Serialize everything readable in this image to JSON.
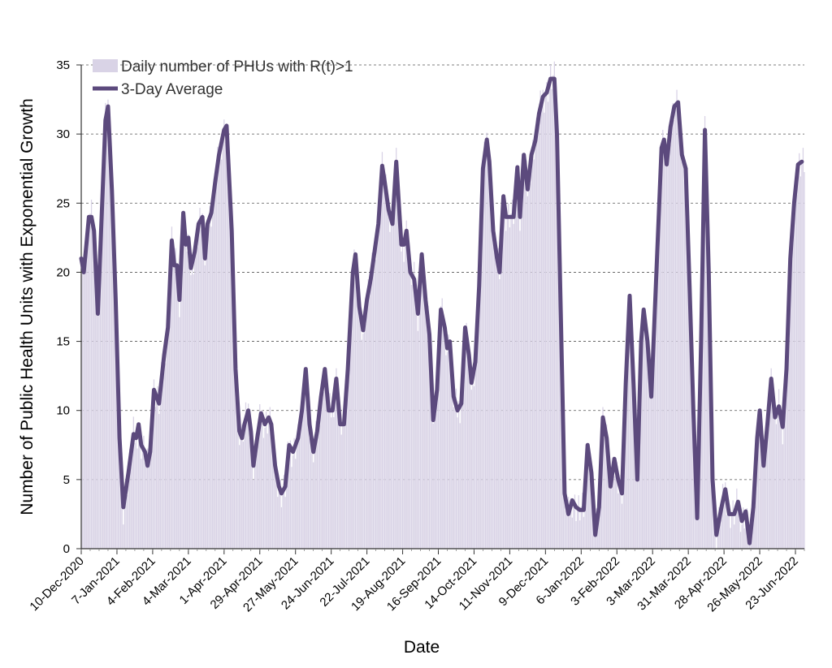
{
  "chart_data": {
    "type": "bar",
    "xlabel": "Date",
    "ylabel": "Number of Public Health Units with Exponential Growth",
    "ylim": [
      0,
      35
    ],
    "yticks": [
      0,
      5,
      10,
      15,
      20,
      25,
      30,
      35
    ],
    "grid": "horizontal dashed",
    "legend_position": "top-left",
    "x_start": "2020-12-10",
    "x_end": "2022-06-30",
    "x_tick_labels": [
      "10-Dec-2020",
      "7-Jan-2021",
      "4-Feb-2021",
      "4-Mar-2021",
      "1-Apr-2021",
      "29-Apr-2021",
      "27-May-2021",
      "24-Jun-2021",
      "22-Jul-2021",
      "19-Aug-2021",
      "16-Sep-2021",
      "14-Oct-2021",
      "11-Nov-2021",
      "9-Dec-2021",
      "6-Jan-2022",
      "3-Feb-2022",
      "3-Mar-2022",
      "31-Mar-2022",
      "28-Apr-2022",
      "26-May-2022",
      "23-Jun-2022"
    ],
    "series": [
      {
        "name": "Daily number of PHUs with R(t)>1",
        "kind": "bar",
        "color": "#d9d3e6"
      },
      {
        "name": "3-Day Average",
        "kind": "line",
        "color": "#5c4a7d",
        "points": [
          [
            "2020-12-10",
            21
          ],
          [
            "2020-12-12",
            20
          ],
          [
            "2020-12-14",
            22
          ],
          [
            "2020-12-16",
            24
          ],
          [
            "2020-12-18",
            24
          ],
          [
            "2020-12-20",
            23
          ],
          [
            "2020-12-23",
            17
          ],
          [
            "2020-12-26",
            24
          ],
          [
            "2020-12-29",
            31
          ],
          [
            "2020-12-31",
            32
          ],
          [
            "2021-01-03",
            26
          ],
          [
            "2021-01-06",
            18
          ],
          [
            "2021-01-09",
            8
          ],
          [
            "2021-01-12",
            3
          ],
          [
            "2021-01-16",
            5.5
          ],
          [
            "2021-01-20",
            8.3
          ],
          [
            "2021-01-22",
            8
          ],
          [
            "2021-01-24",
            9
          ],
          [
            "2021-01-26",
            7.5
          ],
          [
            "2021-01-29",
            7
          ],
          [
            "2021-01-31",
            6
          ],
          [
            "2021-02-02",
            7
          ],
          [
            "2021-02-05",
            11.5
          ],
          [
            "2021-02-09",
            10.5
          ],
          [
            "2021-02-13",
            14
          ],
          [
            "2021-02-16",
            16
          ],
          [
            "2021-02-19",
            22.3
          ],
          [
            "2021-02-21",
            20.5
          ],
          [
            "2021-02-23",
            20.5
          ],
          [
            "2021-02-25",
            18
          ],
          [
            "2021-02-28",
            24.3
          ],
          [
            "2021-03-02",
            22
          ],
          [
            "2021-03-04",
            22.5
          ],
          [
            "2021-03-06",
            20.3
          ],
          [
            "2021-03-09",
            21.5
          ],
          [
            "2021-03-12",
            23.5
          ],
          [
            "2021-03-15",
            24
          ],
          [
            "2021-03-17",
            21
          ],
          [
            "2021-03-19",
            23.5
          ],
          [
            "2021-03-22",
            24.3
          ],
          [
            "2021-03-25",
            26.5
          ],
          [
            "2021-03-28",
            28.5
          ],
          [
            "2021-04-01",
            30.3
          ],
          [
            "2021-04-03",
            30.6
          ],
          [
            "2021-04-07",
            23
          ],
          [
            "2021-04-10",
            13
          ],
          [
            "2021-04-13",
            8.5
          ],
          [
            "2021-04-15",
            8
          ],
          [
            "2021-04-17",
            9
          ],
          [
            "2021-04-20",
            10
          ],
          [
            "2021-04-22",
            8.5
          ],
          [
            "2021-04-24",
            6
          ],
          [
            "2021-04-27",
            8
          ],
          [
            "2021-04-30",
            9.8
          ],
          [
            "2021-05-03",
            9
          ],
          [
            "2021-05-06",
            9.5
          ],
          [
            "2021-05-08",
            9
          ],
          [
            "2021-05-11",
            6
          ],
          [
            "2021-05-14",
            4.5
          ],
          [
            "2021-05-16",
            4
          ],
          [
            "2021-05-19",
            4.5
          ],
          [
            "2021-05-22",
            7.5
          ],
          [
            "2021-05-25",
            7
          ],
          [
            "2021-05-29",
            8
          ],
          [
            "2021-06-01",
            10
          ],
          [
            "2021-06-04",
            13
          ],
          [
            "2021-06-07",
            9
          ],
          [
            "2021-06-10",
            7
          ],
          [
            "2021-06-13",
            8.5
          ],
          [
            "2021-06-16",
            11
          ],
          [
            "2021-06-19",
            13
          ],
          [
            "2021-06-22",
            10
          ],
          [
            "2021-06-25",
            10
          ],
          [
            "2021-06-28",
            12.3
          ],
          [
            "2021-07-01",
            9
          ],
          [
            "2021-07-04",
            9
          ],
          [
            "2021-07-07",
            13
          ],
          [
            "2021-07-11",
            20
          ],
          [
            "2021-07-13",
            21.3
          ],
          [
            "2021-07-16",
            17.5
          ],
          [
            "2021-07-19",
            15.8
          ],
          [
            "2021-07-22",
            18
          ],
          [
            "2021-07-25",
            19.5
          ],
          [
            "2021-07-28",
            21.5
          ],
          [
            "2021-07-31",
            23.5
          ],
          [
            "2021-08-03",
            27.7
          ],
          [
            "2021-08-05",
            26.5
          ],
          [
            "2021-08-08",
            24.5
          ],
          [
            "2021-08-11",
            23.5
          ],
          [
            "2021-08-14",
            28
          ],
          [
            "2021-08-18",
            22
          ],
          [
            "2021-08-20",
            22
          ],
          [
            "2021-08-22",
            23
          ],
          [
            "2021-08-25",
            20
          ],
          [
            "2021-08-28",
            19.5
          ],
          [
            "2021-08-31",
            17
          ],
          [
            "2021-09-03",
            21.3
          ],
          [
            "2021-09-06",
            18
          ],
          [
            "2021-09-09",
            15.5
          ],
          [
            "2021-09-12",
            9.3
          ],
          [
            "2021-09-15",
            11.5
          ],
          [
            "2021-09-18",
            17.3
          ],
          [
            "2021-09-21",
            16
          ],
          [
            "2021-09-23",
            14.5
          ],
          [
            "2021-09-25",
            15
          ],
          [
            "2021-09-28",
            11
          ],
          [
            "2021-10-01",
            10
          ],
          [
            "2021-10-04",
            10.5
          ],
          [
            "2021-10-07",
            16
          ],
          [
            "2021-10-10",
            14
          ],
          [
            "2021-10-12",
            12
          ],
          [
            "2021-10-15",
            13.5
          ],
          [
            "2021-10-18",
            19
          ],
          [
            "2021-10-21",
            27.5
          ],
          [
            "2021-10-24",
            29.6
          ],
          [
            "2021-10-26",
            28
          ],
          [
            "2021-10-29",
            23
          ],
          [
            "2021-11-01",
            21
          ],
          [
            "2021-11-03",
            20
          ],
          [
            "2021-11-06",
            25.5
          ],
          [
            "2021-11-08",
            24
          ],
          [
            "2021-11-11",
            24
          ],
          [
            "2021-11-14",
            24
          ],
          [
            "2021-11-17",
            27.6
          ],
          [
            "2021-11-19",
            24
          ],
          [
            "2021-11-22",
            28.5
          ],
          [
            "2021-11-25",
            26
          ],
          [
            "2021-11-28",
            28.5
          ],
          [
            "2021-12-01",
            29.5
          ],
          [
            "2021-12-04",
            31.5
          ],
          [
            "2021-12-07",
            32.7
          ],
          [
            "2021-12-10",
            33
          ],
          [
            "2021-12-13",
            34
          ],
          [
            "2021-12-16",
            34
          ],
          [
            "2021-12-18",
            30
          ],
          [
            "2021-12-21",
            17
          ],
          [
            "2021-12-24",
            4
          ],
          [
            "2021-12-27",
            2.5
          ],
          [
            "2021-12-30",
            3.5
          ],
          [
            "2022-01-02",
            3
          ],
          [
            "2022-01-05",
            2.8
          ],
          [
            "2022-01-08",
            2.8
          ],
          [
            "2022-01-11",
            7.5
          ],
          [
            "2022-01-14",
            5.5
          ],
          [
            "2022-01-17",
            1
          ],
          [
            "2022-01-20",
            3
          ],
          [
            "2022-01-23",
            9.5
          ],
          [
            "2022-01-26",
            8
          ],
          [
            "2022-01-29",
            4.5
          ],
          [
            "2022-02-01",
            6.5
          ],
          [
            "2022-02-04",
            5
          ],
          [
            "2022-02-07",
            4
          ],
          [
            "2022-02-10",
            12
          ],
          [
            "2022-02-13",
            18.3
          ],
          [
            "2022-02-16",
            12
          ],
          [
            "2022-02-19",
            5
          ],
          [
            "2022-02-22",
            15
          ],
          [
            "2022-02-24",
            17.3
          ],
          [
            "2022-02-27",
            15
          ],
          [
            "2022-03-02",
            11
          ],
          [
            "2022-03-06",
            20
          ],
          [
            "2022-03-10",
            29
          ],
          [
            "2022-03-12",
            29.6
          ],
          [
            "2022-03-14",
            27.8
          ],
          [
            "2022-03-17",
            30.5
          ],
          [
            "2022-03-20",
            32
          ],
          [
            "2022-03-23",
            32.3
          ],
          [
            "2022-03-26",
            28.5
          ],
          [
            "2022-03-29",
            27.5
          ],
          [
            "2022-04-01",
            19
          ],
          [
            "2022-04-04",
            10
          ],
          [
            "2022-04-07",
            2.2
          ],
          [
            "2022-04-10",
            15
          ],
          [
            "2022-04-13",
            30.3
          ],
          [
            "2022-04-16",
            20
          ],
          [
            "2022-04-19",
            5
          ],
          [
            "2022-04-22",
            1
          ],
          [
            "2022-04-26",
            3
          ],
          [
            "2022-04-29",
            4.3
          ],
          [
            "2022-05-02",
            2.5
          ],
          [
            "2022-05-06",
            2.5
          ],
          [
            "2022-05-09",
            3.4
          ],
          [
            "2022-05-12",
            2
          ],
          [
            "2022-05-15",
            2.7
          ],
          [
            "2022-05-18",
            0.4
          ],
          [
            "2022-05-21",
            3
          ],
          [
            "2022-05-24",
            8
          ],
          [
            "2022-05-26",
            10
          ],
          [
            "2022-05-29",
            6
          ],
          [
            "2022-06-01",
            9
          ],
          [
            "2022-06-04",
            12.3
          ],
          [
            "2022-06-07",
            9.5
          ],
          [
            "2022-06-10",
            10.3
          ],
          [
            "2022-06-13",
            8.8
          ],
          [
            "2022-06-16",
            13
          ],
          [
            "2022-06-19",
            21
          ],
          [
            "2022-06-22",
            25
          ],
          [
            "2022-06-25",
            27.8
          ],
          [
            "2022-06-28",
            28
          ]
        ]
      }
    ]
  }
}
